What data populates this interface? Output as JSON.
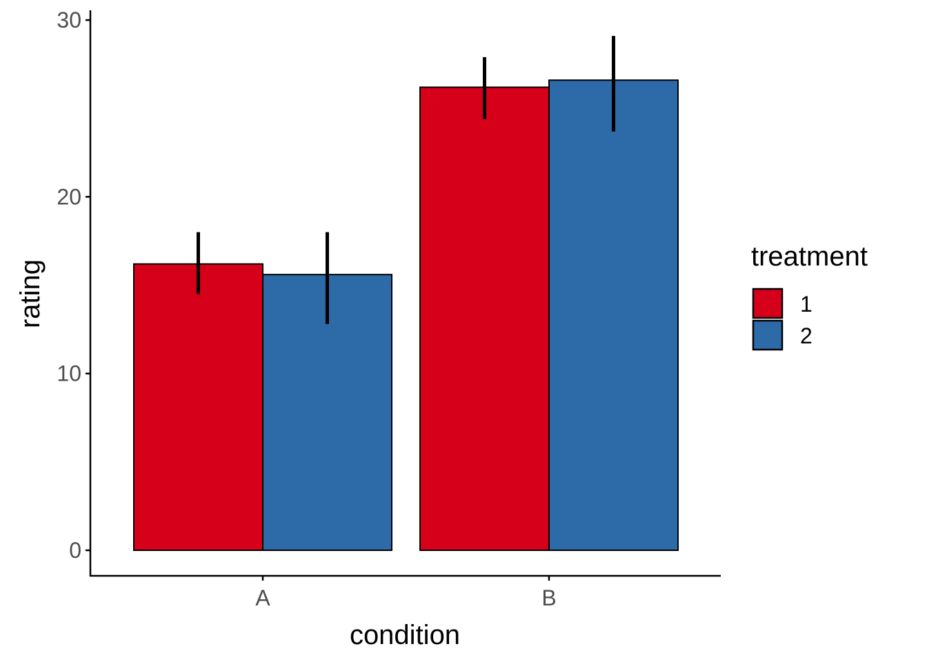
{
  "chart_data": {
    "type": "bar",
    "title": "",
    "xlabel": "condition",
    "ylabel": "rating",
    "categories": [
      "A",
      "B"
    ],
    "ylim": [
      -1.4,
      30.6
    ],
    "yticks": [
      0,
      10,
      20,
      30
    ],
    "ytick_labels": [
      "0",
      "10",
      "20",
      "30"
    ],
    "grid": false,
    "legend": {
      "title": "treatment",
      "position": "right",
      "entries": [
        "1",
        "2"
      ]
    },
    "series": [
      {
        "name": "1",
        "color": "#D7001A",
        "values": [
          16.2,
          26.2
        ],
        "error_low": [
          14.5,
          24.4
        ],
        "error_high": [
          18.0,
          27.9
        ]
      },
      {
        "name": "2",
        "color": "#2D6AA8",
        "values": [
          15.6,
          26.6
        ],
        "error_low": [
          12.8,
          23.7
        ],
        "error_high": [
          18.0,
          29.1
        ]
      }
    ]
  }
}
